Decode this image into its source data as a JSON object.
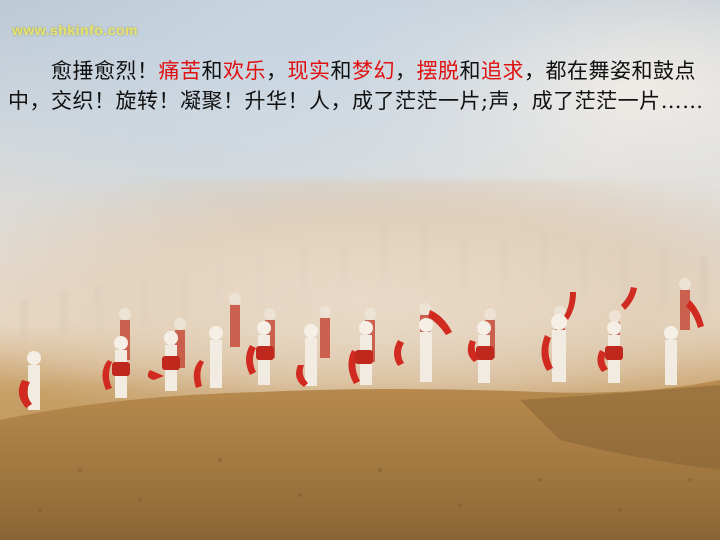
{
  "watermark": {
    "text": "www.shkinfo.com"
  },
  "paragraph": {
    "segments": [
      {
        "text": "　　愈捶愈烈！",
        "highlight": false
      },
      {
        "text": "痛苦",
        "highlight": true
      },
      {
        "text": "和",
        "highlight": false
      },
      {
        "text": "欢乐",
        "highlight": true
      },
      {
        "text": "，",
        "highlight": false
      },
      {
        "text": "现实",
        "highlight": true
      },
      {
        "text": "和",
        "highlight": false
      },
      {
        "text": "梦幻",
        "highlight": true
      },
      {
        "text": "，",
        "highlight": false
      },
      {
        "text": "摆脱",
        "highlight": true
      },
      {
        "text": "和",
        "highlight": false
      },
      {
        "text": "追求",
        "highlight": true
      },
      {
        "text": "，都在舞姿和鼓点中，交织！旋转！凝聚！升华！人，成了茫茫一片;声，成了茫茫一片……",
        "highlight": false
      }
    ]
  },
  "colors": {
    "highlight": "#e01010",
    "text": "#111111",
    "watermark": "#e8e36a"
  }
}
